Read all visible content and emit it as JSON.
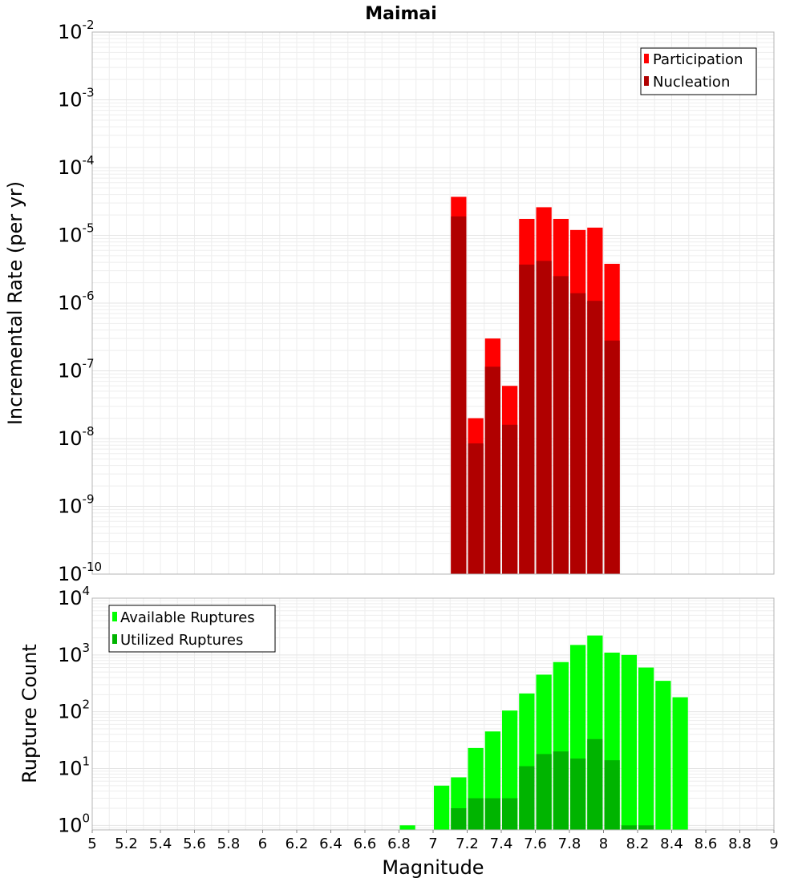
{
  "title": "Maimai",
  "colors": {
    "participation": "#ff0000",
    "nucleation": "#b00000",
    "available": "#00ff00",
    "utilized": "#00b400"
  },
  "chart_data": [
    {
      "type": "bar",
      "panel": "top",
      "ylabel": "Incremental Rate (per yr)",
      "yscale": "log",
      "ylim_exp": [
        -10,
        -2
      ],
      "ytick_base": "10",
      "yticks_exp": [
        "-10",
        "-9",
        "-8",
        "-7",
        "-6",
        "-5",
        "-4",
        "-3",
        "-2"
      ],
      "xlim": [
        5,
        9
      ],
      "bin_width": 0.1,
      "legend": [
        "Participation",
        "Nucleation"
      ],
      "legend_position": "top-right",
      "series": [
        {
          "name": "Participation",
          "x": [
            7.15,
            7.25,
            7.35,
            7.45,
            7.55,
            7.65,
            7.75,
            7.85,
            7.95,
            8.05
          ],
          "values": [
            3.7e-05,
            2e-08,
            3e-07,
            6e-08,
            1.75e-05,
            2.6e-05,
            1.75e-05,
            1.2e-05,
            1.3e-05,
            3.8e-06
          ]
        },
        {
          "name": "Nucleation",
          "x": [
            7.15,
            7.25,
            7.35,
            7.45,
            7.55,
            7.65,
            7.75,
            7.85,
            7.95,
            8.05
          ],
          "values": [
            1.9e-05,
            8.5e-09,
            1.15e-07,
            1.6e-08,
            3.7e-06,
            4.2e-06,
            2.5e-06,
            1.4e-06,
            1.08e-06,
            2.8e-07
          ]
        }
      ]
    },
    {
      "type": "bar",
      "panel": "bottom",
      "ylabel": "Rupture Count",
      "xlabel": "Magnitude",
      "yscale": "log",
      "ylim_exp": [
        -0.08,
        4
      ],
      "ytick_base": "10",
      "yticks_exp": [
        "0",
        "1",
        "2",
        "3",
        "4"
      ],
      "xlim": [
        5,
        9
      ],
      "xticks": [
        "5",
        "5.2",
        "5.4",
        "5.6",
        "5.8",
        "6",
        "6.2",
        "6.4",
        "6.6",
        "6.8",
        "7",
        "7.2",
        "7.4",
        "7.6",
        "7.8",
        "8",
        "8.2",
        "8.4",
        "8.6",
        "8.8",
        "9"
      ],
      "bin_width": 0.1,
      "legend": [
        "Available Ruptures",
        "Utilized Ruptures"
      ],
      "legend_position": "top-left",
      "series": [
        {
          "name": "Available Ruptures",
          "x": [
            6.85,
            7.05,
            7.15,
            7.25,
            7.35,
            7.45,
            7.55,
            7.65,
            7.75,
            7.85,
            7.95,
            8.05,
            8.15,
            8.25,
            8.35,
            8.45
          ],
          "values": [
            1,
            5,
            7,
            23,
            45,
            105,
            210,
            450,
            750,
            1500,
            2200,
            1100,
            1000,
            600,
            350,
            180
          ]
        },
        {
          "name": "Utilized Ruptures",
          "x": [
            7.15,
            7.25,
            7.35,
            7.45,
            7.55,
            7.65,
            7.75,
            7.85,
            7.95,
            8.05,
            8.15,
            8.25
          ],
          "values": [
            2,
            3,
            3,
            3,
            11,
            18,
            20,
            15,
            33,
            14,
            1,
            1
          ]
        }
      ]
    }
  ]
}
